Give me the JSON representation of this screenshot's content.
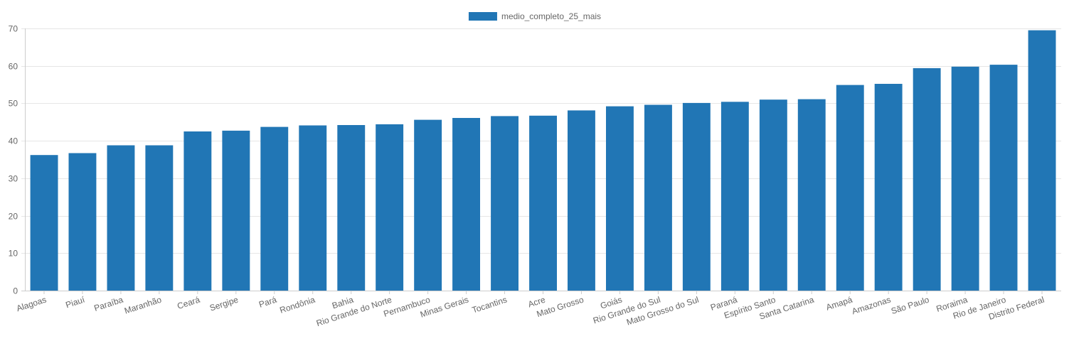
{
  "chart_data": {
    "type": "bar",
    "series": [
      {
        "name": "medio_completo_25_mais",
        "color": "#2176b5",
        "values": [
          36.2,
          36.7,
          38.8,
          38.8,
          42.5,
          42.7,
          43.7,
          44.1,
          44.2,
          44.4,
          45.6,
          46.1,
          46.6,
          46.7,
          48.1,
          49.2,
          49.6,
          50.1,
          50.4,
          51.0,
          51.1,
          54.9,
          55.2,
          59.4,
          59.8,
          60.3,
          69.5
        ]
      }
    ],
    "categories": [
      "Alagoas",
      "Piauí",
      "Paraíba",
      "Maranhão",
      "Ceará",
      "Sergipe",
      "Pará",
      "Rondônia",
      "Bahia",
      "Rio Grande do Norte",
      "Pernambuco",
      "Minas Gerais",
      "Tocantins",
      "Acre",
      "Mato Grosso",
      "Goiás",
      "Rio Grande do Sul",
      "Mato Grosso do Sul",
      "Paraná",
      "Espírito Santo",
      "Santa Catarina",
      "Amapá",
      "Amazonas",
      "São Paulo",
      "Roraima",
      "Rio de Janeiro",
      "Distrito Federal"
    ],
    "ylim": [
      0,
      70
    ],
    "yticks": [
      0,
      10,
      20,
      30,
      40,
      50,
      60,
      70
    ],
    "grid": true,
    "legend_position": "top-center"
  }
}
